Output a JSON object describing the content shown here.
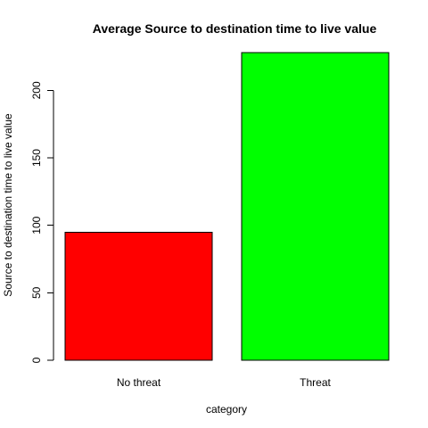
{
  "chart_data": {
    "type": "bar",
    "title": "Average Source to destination time to live value",
    "xlabel": "category",
    "ylabel": "Source to destination time to live value",
    "categories": [
      "No threat",
      "Threat"
    ],
    "values": [
      95,
      228
    ],
    "colors": [
      "#ff0000",
      "#00ff00"
    ],
    "ylim": [
      0,
      228
    ],
    "yticks": [
      0,
      50,
      100,
      150,
      200
    ],
    "grid": false
  }
}
